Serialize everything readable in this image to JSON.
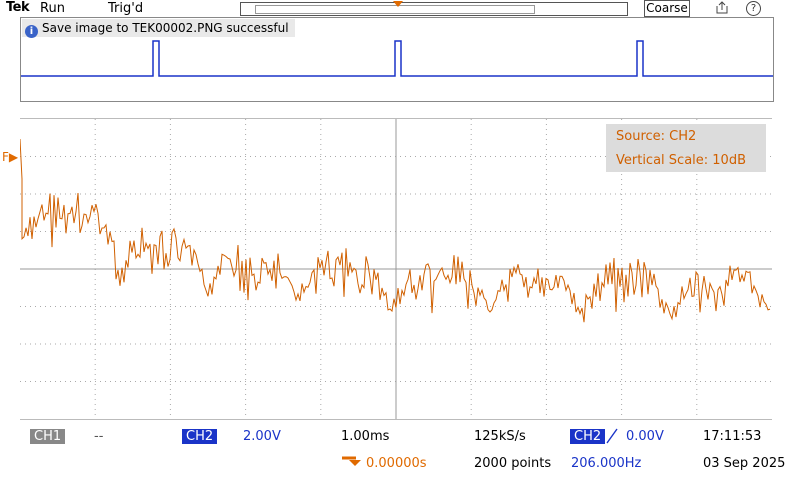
{
  "brand": "Tek",
  "acq_state": "Run",
  "trigger_state": "Trig'd",
  "coarse_label": "Coarse",
  "help_label": "?",
  "notice": "Save image to TEK00002.PNG successful",
  "readout": {
    "source": "Source: CH2",
    "vscale": "Vertical Scale: 10dB"
  },
  "ref_marker": "F",
  "bottom": {
    "ch1": "CH1",
    "ch1_value": "--",
    "ch2": "CH2",
    "ch2_value": "2.00V",
    "timebase": "1.00ms",
    "sample_rate": "125kS/s",
    "trig_source": "CH2",
    "trig_level": "0.00V",
    "time": "17:11:53",
    "position": "0.00000s",
    "record": "2000 points",
    "frequency": "206.000Hz",
    "date": "03 Sep 2025"
  },
  "colors": {
    "ch2_trace": "#1a34c8",
    "fft_trace": "#d06000",
    "ch1_gray": "#888888",
    "ch2_blue": "#1a34c8"
  }
}
